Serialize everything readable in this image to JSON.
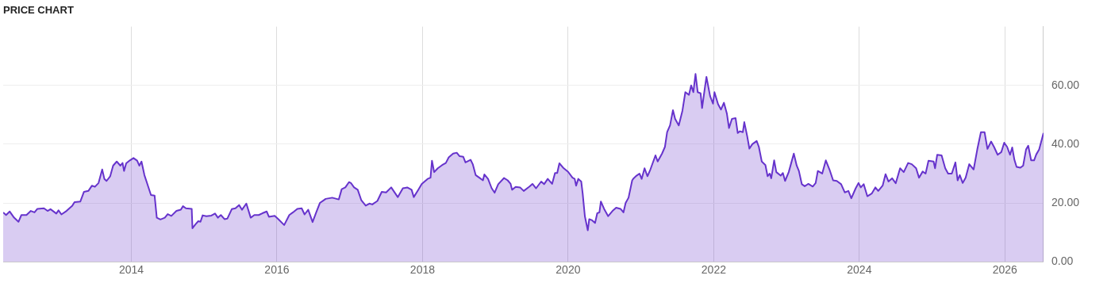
{
  "chart_data": {
    "type": "area",
    "title": "PRICE CHART",
    "x": [
      2012.24,
      2012.28,
      2012.33,
      2012.39,
      2012.45,
      2012.49,
      2012.56,
      2012.62,
      2012.67,
      2012.71,
      2012.8,
      2012.85,
      2012.89,
      2012.97,
      2013.0,
      2013.04,
      2013.11,
      2013.19,
      2013.22,
      2013.3,
      2013.35,
      2013.41,
      2013.46,
      2013.5,
      2013.55,
      2013.6,
      2013.63,
      2013.66,
      2013.71,
      2013.75,
      2013.8,
      2013.85,
      2013.88,
      2013.9,
      2013.93,
      2013.98,
      2014.03,
      2014.08,
      2014.11,
      2014.14,
      2014.18,
      2014.22,
      2014.27,
      2014.32,
      2014.35,
      2014.4,
      2014.46,
      2014.5,
      2014.55,
      2014.62,
      2014.68,
      2014.71,
      2014.75,
      2014.83,
      2014.84,
      2014.88,
      2014.92,
      2014.95,
      2014.98,
      2015.03,
      2015.1,
      2015.15,
      2015.19,
      2015.23,
      2015.28,
      2015.32,
      2015.38,
      2015.43,
      2015.48,
      2015.52,
      2015.58,
      2015.64,
      2015.69,
      2015.75,
      2015.8,
      2015.86,
      2015.89,
      2015.97,
      2016.02,
      2016.1,
      2016.17,
      2016.22,
      2016.28,
      2016.34,
      2016.38,
      2016.43,
      2016.49,
      2016.54,
      2016.59,
      2016.67,
      2016.76,
      2016.85,
      2016.89,
      2016.94,
      2016.99,
      2017.02,
      2017.06,
      2017.11,
      2017.16,
      2017.22,
      2017.27,
      2017.31,
      2017.38,
      2017.44,
      2017.5,
      2017.57,
      2017.66,
      2017.73,
      2017.79,
      2017.85,
      2017.88,
      2017.94,
      2017.99,
      2018.07,
      2018.11,
      2018.13,
      2018.16,
      2018.21,
      2018.27,
      2018.32,
      2018.36,
      2018.42,
      2018.47,
      2018.51,
      2018.56,
      2018.59,
      2018.66,
      2018.69,
      2018.73,
      2018.78,
      2018.83,
      2018.85,
      2018.9,
      2018.95,
      2018.99,
      2019.04,
      2019.12,
      2019.17,
      2019.21,
      2019.23,
      2019.28,
      2019.34,
      2019.39,
      2019.47,
      2019.51,
      2019.56,
      2019.63,
      2019.67,
      2019.72,
      2019.78,
      2019.82,
      2019.85,
      2019.88,
      2019.94,
      2020.0,
      2020.06,
      2020.09,
      2020.11,
      2020.14,
      2020.18,
      2020.2,
      2020.23,
      2020.27,
      2020.29,
      2020.33,
      2020.37,
      2020.4,
      2020.43,
      2020.45,
      2020.5,
      2020.55,
      2020.61,
      2020.66,
      2020.72,
      2020.76,
      2020.79,
      2020.83,
      2020.88,
      2020.9,
      2020.94,
      2020.98,
      2021.01,
      2021.05,
      2021.09,
      2021.13,
      2021.2,
      2021.23,
      2021.29,
      2021.33,
      2021.36,
      2021.4,
      2021.44,
      2021.47,
      2021.52,
      2021.57,
      2021.61,
      2021.66,
      2021.69,
      2021.72,
      2021.75,
      2021.78,
      2021.82,
      2021.84,
      2021.88,
      2021.9,
      2021.95,
      2021.99,
      2022.01,
      2022.06,
      2022.1,
      2022.14,
      2022.18,
      2022.21,
      2022.25,
      2022.3,
      2022.33,
      2022.36,
      2022.4,
      2022.42,
      2022.46,
      2022.49,
      2022.53,
      2022.59,
      2022.62,
      2022.66,
      2022.71,
      2022.74,
      2022.77,
      2022.79,
      2022.83,
      2022.86,
      2022.92,
      2022.95,
      2022.98,
      2023.03,
      2023.06,
      2023.1,
      2023.14,
      2023.17,
      2023.21,
      2023.25,
      2023.3,
      2023.36,
      2023.4,
      2023.43,
      2023.49,
      2023.54,
      2023.59,
      2023.64,
      2023.69,
      2023.75,
      2023.8,
      2023.85,
      2023.89,
      2023.95,
      2023.99,
      2024.02,
      2024.06,
      2024.11,
      2024.17,
      2024.22,
      2024.26,
      2024.32,
      2024.36,
      2024.4,
      2024.45,
      2024.5,
      2024.56,
      2024.61,
      2024.67,
      2024.72,
      2024.78,
      2024.82,
      2024.87,
      2024.91,
      2024.95,
      2025.02,
      2025.04,
      2025.07,
      2025.13,
      2025.18,
      2025.22,
      2025.27,
      2025.32,
      2025.35,
      2025.38,
      2025.42,
      2025.46,
      2025.51,
      2025.57,
      2025.62,
      2025.67,
      2025.72,
      2025.76,
      2025.81,
      2025.85,
      2025.9,
      2025.95,
      2025.99,
      2026.03,
      2026.07,
      2026.1,
      2026.13,
      2026.16,
      2026.21,
      2026.25,
      2026.29,
      2026.32,
      2026.36,
      2026.4,
      2026.43,
      2026.47,
      2026.53
    ],
    "series": [
      {
        "color": "#6633cc",
        "values": [
          16.8,
          15.9,
          17.1,
          15.0,
          13.6,
          15.9,
          15.9,
          17.3,
          16.8,
          18.0,
          18.2,
          17.3,
          17.9,
          16.4,
          17.5,
          16.1,
          17.3,
          19.1,
          20.3,
          20.5,
          23.8,
          24.1,
          25.9,
          25.5,
          26.8,
          31.4,
          28.2,
          27.5,
          29.1,
          32.7,
          34.1,
          32.7,
          33.6,
          30.9,
          33.5,
          34.5,
          35.3,
          34.4,
          32.7,
          34.1,
          29.5,
          26.5,
          22.7,
          22.5,
          15.0,
          14.4,
          15.0,
          16.2,
          15.6,
          17.3,
          17.7,
          18.9,
          18.2,
          18.0,
          11.4,
          12.7,
          13.8,
          13.6,
          15.8,
          15.5,
          15.7,
          16.4,
          15.0,
          15.9,
          14.5,
          14.7,
          17.9,
          18.2,
          19.3,
          17.7,
          19.8,
          15.0,
          15.9,
          15.9,
          16.5,
          17.1,
          15.3,
          15.6,
          14.5,
          12.5,
          15.9,
          16.8,
          18.0,
          18.2,
          16.1,
          17.7,
          13.5,
          16.8,
          20.0,
          21.4,
          21.8,
          21.2,
          24.7,
          25.3,
          27.1,
          26.7,
          25.3,
          24.5,
          20.9,
          19.1,
          19.8,
          19.5,
          20.7,
          23.8,
          23.6,
          25.3,
          22.0,
          25.0,
          25.3,
          24.5,
          22.0,
          24.4,
          26.5,
          28.2,
          28.6,
          34.4,
          30.5,
          31.8,
          32.9,
          33.6,
          35.5,
          36.8,
          37.1,
          35.9,
          35.7,
          33.8,
          34.7,
          33.2,
          29.5,
          28.6,
          27.7,
          29.7,
          28.2,
          25.0,
          23.5,
          26.4,
          28.5,
          27.7,
          26.5,
          24.5,
          25.5,
          25.3,
          24.1,
          25.6,
          26.5,
          25.0,
          27.3,
          26.4,
          28.2,
          26.5,
          30.2,
          30.2,
          33.5,
          31.8,
          30.6,
          28.6,
          28.2,
          25.9,
          28.2,
          27.3,
          23.2,
          15.5,
          10.7,
          14.5,
          14.1,
          13.2,
          16.5,
          16.8,
          20.5,
          17.7,
          15.5,
          17.3,
          18.4,
          18.0,
          16.8,
          20.0,
          21.8,
          27.7,
          28.4,
          29.3,
          30.0,
          28.2,
          31.8,
          29.1,
          31.4,
          36.2,
          34.1,
          36.8,
          39.1,
          44.1,
          46.4,
          51.6,
          48.6,
          46.4,
          51.4,
          57.7,
          56.8,
          60.0,
          57.7,
          63.9,
          57.7,
          57.3,
          52.3,
          59.5,
          62.9,
          56.4,
          53.8,
          57.7,
          53.6,
          51.8,
          54.1,
          50.5,
          45.5,
          48.6,
          48.9,
          43.8,
          44.4,
          44.1,
          47.5,
          42.7,
          38.5,
          40.0,
          41.1,
          39.1,
          34.1,
          32.9,
          29.1,
          30.0,
          28.4,
          34.5,
          30.5,
          29.3,
          30.2,
          27.5,
          30.5,
          33.2,
          36.8,
          32.7,
          30.9,
          26.4,
          25.7,
          26.5,
          25.6,
          26.8,
          30.9,
          30.0,
          34.5,
          31.4,
          27.7,
          27.5,
          26.4,
          23.6,
          24.1,
          21.6,
          25.0,
          26.8,
          25.3,
          26.4,
          22.3,
          23.2,
          25.3,
          24.1,
          25.9,
          29.8,
          27.3,
          28.4,
          26.7,
          31.8,
          30.5,
          33.6,
          33.2,
          31.8,
          28.6,
          30.7,
          30.0,
          34.4,
          34.1,
          31.8,
          36.4,
          36.2,
          31.8,
          30.0,
          30.0,
          33.8,
          27.7,
          29.5,
          26.8,
          28.6,
          33.2,
          31.4,
          38.2,
          44.1,
          44.1,
          38.4,
          40.9,
          39.1,
          36.4,
          37.3,
          40.5,
          39.1,
          36.4,
          38.9,
          34.7,
          32.3,
          32.0,
          32.7,
          38.2,
          39.5,
          34.5,
          34.5,
          36.5,
          38.2,
          43.8
        ]
      }
    ],
    "xlim": [
      2012.24,
      2026.53
    ],
    "xticks": [
      2014,
      2016,
      2018,
      2020,
      2022,
      2024,
      2026
    ],
    "ylim": [
      0,
      80
    ],
    "yticks": [
      {
        "value": 0,
        "label": "0.00"
      },
      {
        "value": 20,
        "label": "20.00"
      },
      {
        "value": 40,
        "label": "40.00"
      },
      {
        "value": 60,
        "label": "60.00"
      }
    ],
    "grid": true,
    "legend": false
  }
}
